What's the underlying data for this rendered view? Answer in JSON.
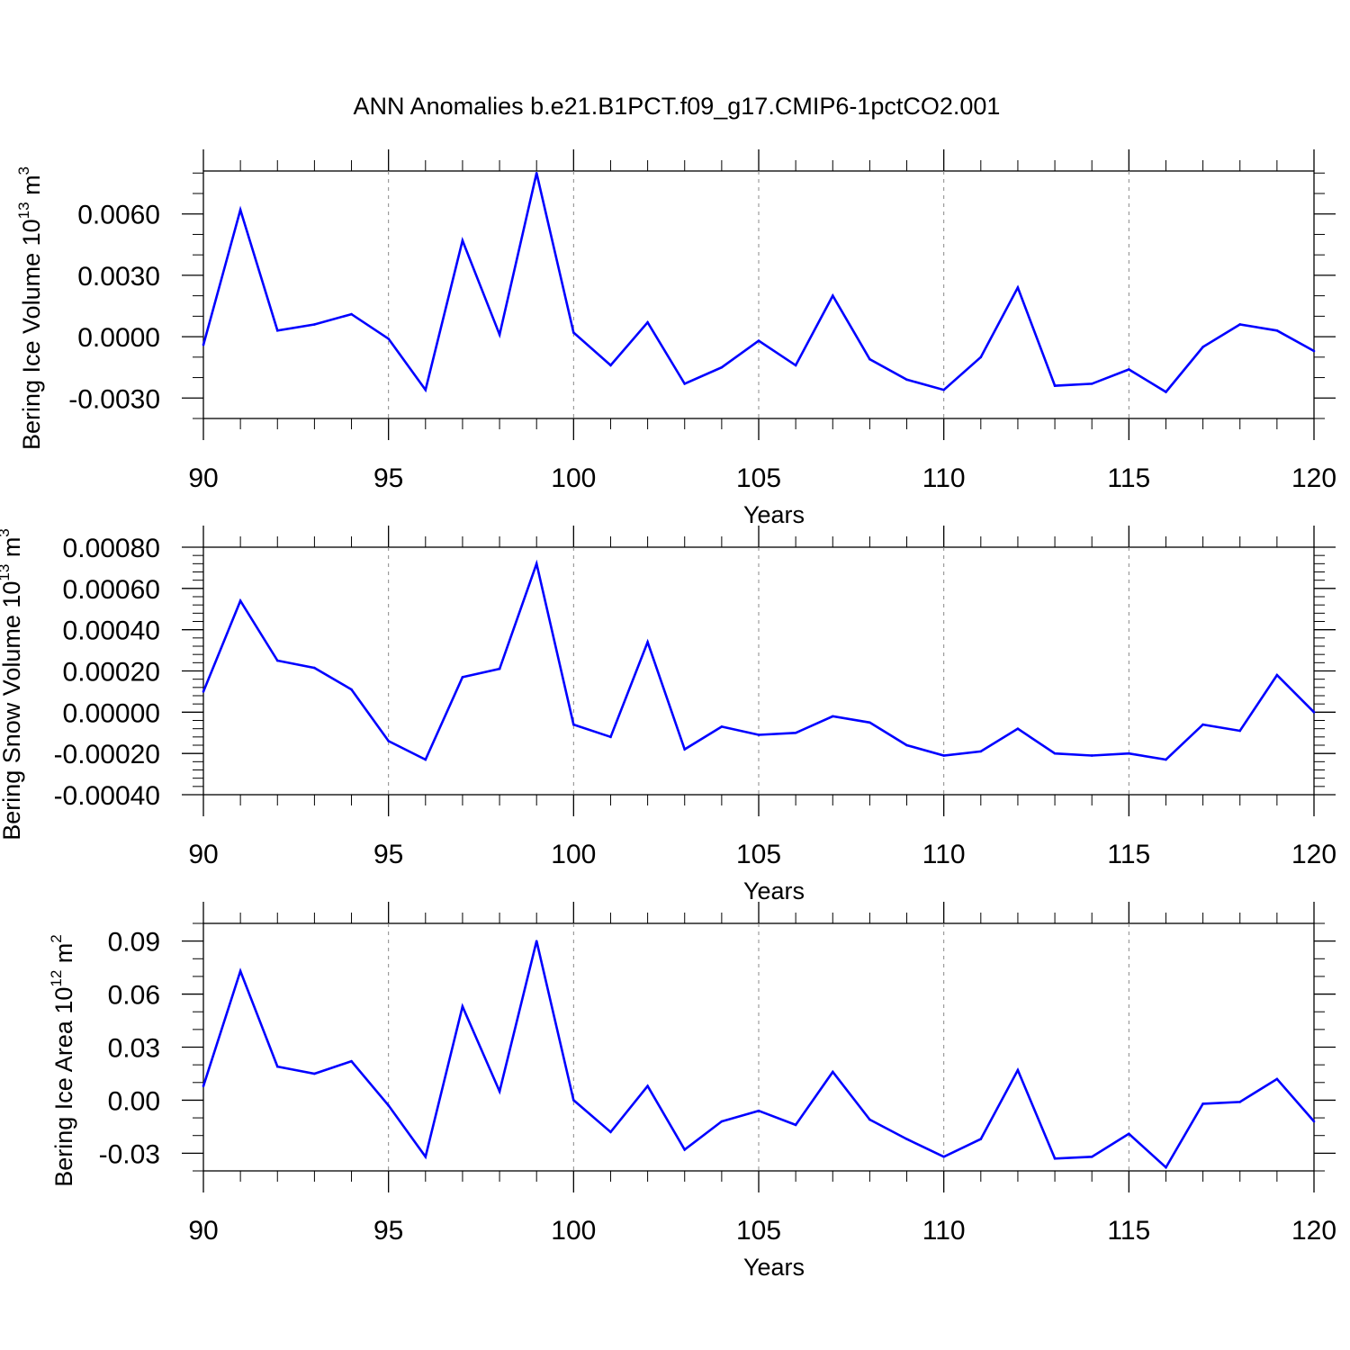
{
  "figure": {
    "title": "ANN Anomalies b.e21.B1PCT.f09_g17.CMIP6-1pctCO2.001"
  },
  "chart_data": [
    {
      "type": "line",
      "ylabel_main": "Bering Ice Volume 10",
      "ylabel_exp": "13",
      "ylabel_unit": "m",
      "ylabel_unit_exp": "3",
      "xlabel": "Years",
      "xlim": [
        90,
        120
      ],
      "ylim": [
        -0.004,
        0.0081
      ],
      "x_ticks": [
        90,
        95,
        100,
        105,
        110,
        115,
        120
      ],
      "x_tick_labels": [
        "90",
        "95",
        "100",
        "105",
        "110",
        "115",
        "120"
      ],
      "y_ticks": [
        -0.003,
        0.0,
        0.003,
        0.006
      ],
      "y_tick_labels": [
        "-0.0030",
        "0.0000",
        "0.0030",
        "0.0060"
      ],
      "y_minor_step": 0.001,
      "grid": "vertical dashed at major x ticks",
      "line_color": "#0000ff",
      "x": [
        90,
        91,
        92,
        93,
        94,
        95,
        96,
        97,
        98,
        99,
        100,
        101,
        102,
        103,
        104,
        105,
        106,
        107,
        108,
        109,
        110,
        111,
        112,
        113,
        114,
        115,
        116,
        117,
        118,
        119,
        120
      ],
      "values": [
        -0.0004,
        0.0062,
        0.0003,
        0.0006,
        0.0011,
        -0.0001,
        -0.0026,
        0.0047,
        0.0001,
        0.008,
        0.0002,
        -0.0014,
        0.0007,
        -0.0023,
        -0.0015,
        -0.0002,
        -0.0014,
        0.002,
        -0.0011,
        -0.0021,
        -0.0026,
        -0.001,
        0.0024,
        -0.0024,
        -0.0023,
        -0.0016,
        -0.0027,
        -0.0005,
        0.0006,
        0.0003,
        -0.0007
      ]
    },
    {
      "type": "line",
      "ylabel_main": "Bering Snow Volume 10",
      "ylabel_exp": "13",
      "ylabel_unit": "m",
      "ylabel_unit_exp": "3",
      "xlabel": "Years",
      "xlim": [
        90,
        120
      ],
      "ylim": [
        -0.0004,
        0.0008
      ],
      "x_ticks": [
        90,
        95,
        100,
        105,
        110,
        115,
        120
      ],
      "x_tick_labels": [
        "90",
        "95",
        "100",
        "105",
        "110",
        "115",
        "120"
      ],
      "y_ticks": [
        -0.0004,
        -0.0002,
        0.0,
        0.0002,
        0.0004,
        0.0006,
        0.0008
      ],
      "y_tick_labels": [
        "-0.00040",
        "-0.00020",
        "0.00000",
        "0.00020",
        "0.00040",
        "0.00060",
        "0.00080"
      ],
      "y_minor_step": 4e-05,
      "grid": "vertical dashed at major x ticks",
      "line_color": "#0000ff",
      "x": [
        90,
        91,
        92,
        93,
        94,
        95,
        96,
        97,
        98,
        99,
        100,
        101,
        102,
        103,
        104,
        105,
        106,
        107,
        108,
        109,
        110,
        111,
        112,
        113,
        114,
        115,
        116,
        117,
        118,
        119,
        120
      ],
      "values": [
        0.0001,
        0.00054,
        0.00025,
        0.000215,
        0.00011,
        -0.00014,
        -0.00023,
        0.00017,
        0.00021,
        0.00072,
        -6e-05,
        -0.00012,
        0.00034,
        -0.00018,
        -7e-05,
        -0.00011,
        -0.0001,
        -2e-05,
        -5e-05,
        -0.00016,
        -0.00021,
        -0.00019,
        -8e-05,
        -0.0002,
        -0.00021,
        -0.0002,
        -0.00023,
        -6e-05,
        -9e-05,
        0.00018,
        0.0
      ]
    },
    {
      "type": "line",
      "ylabel_main": "Bering Ice Area 10",
      "ylabel_exp": "12",
      "ylabel_unit": "m",
      "ylabel_unit_exp": "2",
      "xlabel": "Years",
      "xlim": [
        90,
        120
      ],
      "ylim": [
        -0.04,
        0.1
      ],
      "x_ticks": [
        90,
        95,
        100,
        105,
        110,
        115,
        120
      ],
      "x_tick_labels": [
        "90",
        "95",
        "100",
        "105",
        "110",
        "115",
        "120"
      ],
      "y_ticks": [
        -0.03,
        0.0,
        0.03,
        0.06,
        0.09
      ],
      "y_tick_labels": [
        "-0.03",
        "0.00",
        "0.03",
        "0.06",
        "0.09"
      ],
      "y_minor_step": 0.01,
      "grid": "vertical dashed at major x ticks",
      "line_color": "#0000ff",
      "x": [
        90,
        91,
        92,
        93,
        94,
        95,
        96,
        97,
        98,
        99,
        100,
        101,
        102,
        103,
        104,
        105,
        106,
        107,
        108,
        109,
        110,
        111,
        112,
        113,
        114,
        115,
        116,
        117,
        118,
        119,
        120
      ],
      "values": [
        0.008,
        0.073,
        0.019,
        0.015,
        0.022,
        -0.003,
        -0.032,
        0.053,
        0.005,
        0.09,
        0.0,
        -0.018,
        0.008,
        -0.028,
        -0.012,
        -0.006,
        -0.014,
        0.016,
        -0.011,
        -0.022,
        -0.032,
        -0.022,
        0.017,
        -0.033,
        -0.032,
        -0.019,
        -0.038,
        -0.002,
        -0.001,
        0.012,
        -0.012
      ]
    }
  ]
}
